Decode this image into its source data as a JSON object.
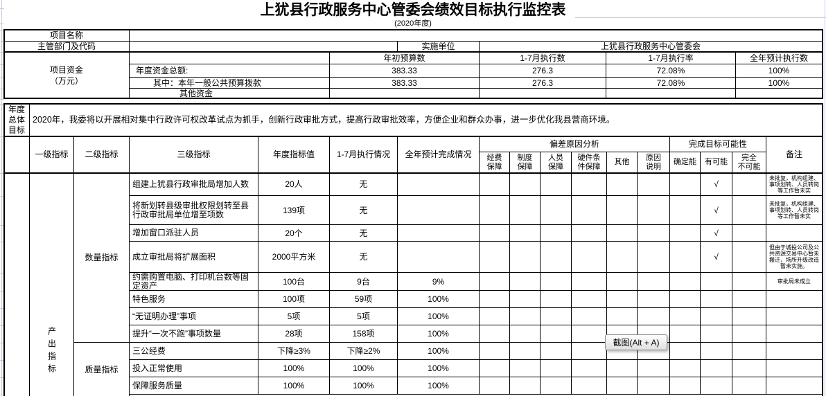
{
  "title": "上犹县行政服务中心管委会绩效目标执行监控表",
  "subtitle": "(2020年度)",
  "info": {
    "project_name_label": "项目名称",
    "department_label": "主管部门及代码",
    "implement_unit_label": "实施单位",
    "implement_unit_value": "上犹县行政服务中心管委会"
  },
  "funds": {
    "label": "项目资金\n（万元）",
    "columns": [
      "年初预算数",
      "1-7月执行数",
      "1-7月执行率",
      "全年预计执行数"
    ],
    "rows": [
      {
        "label": "年度资金总额:",
        "values": [
          "383.33",
          "276.3",
          "72.08%",
          "100%"
        ]
      },
      {
        "label": "其中：本年一般公共预算拨款",
        "values": [
          "383.33",
          "276.3",
          "72.08%",
          "100%"
        ]
      },
      {
        "label": "其他资金",
        "values": [
          "",
          "",
          "",
          ""
        ]
      }
    ]
  },
  "annual_goal": {
    "label": "年度总体目标",
    "text": "2020年，我委将以开展相对集中行政许可权改革试点为抓手，创新行政审批方式，提高行政审批效率，方便企业和群众办事，进一步优化我县营商环境。"
  },
  "indicators": {
    "headers": {
      "level1": "一级指标",
      "level2": "二级指标",
      "level3": "三级指标",
      "target": "年度指标值",
      "exec": "1-7月执行情况",
      "forecast": "全年预计完成情况",
      "deviation": "偏差原因分析",
      "dev_cols": [
        "经费\n保障",
        "制度\n保障",
        "人员\n保障",
        "硬件条\n件保障",
        "其他",
        "原因\n说明"
      ],
      "possibility": "完成目标可能性",
      "pos_cols": [
        "确定能",
        "有可能",
        "完全\n不可能"
      ],
      "remark": "备注"
    },
    "level1_value": "产出指标",
    "level2_values": [
      "数量指标",
      "质量指标"
    ],
    "rows": [
      {
        "level3": "组建上犹县行政审批局增加人数",
        "target": "20人",
        "exec": "无",
        "forecast": "",
        "likely": "√",
        "remark": "未批复，机构组建、事项划转、人员转岗等工作暂未实"
      },
      {
        "level3": "将新划转县级审批权限划转至县行政审批局单位增至项数",
        "target": "139项",
        "exec": "无",
        "forecast": "",
        "likely": "√",
        "remark": "未批复，机构组建、事项划转、人员转岗等工作暂未实"
      },
      {
        "level3": "增加窗口派驻人员",
        "target": "20个",
        "exec": "无",
        "forecast": "",
        "likely": "√",
        "remark": ""
      },
      {
        "level3": "成立审批局将扩展面积",
        "target": "2000平方米",
        "exec": "无",
        "forecast": "",
        "likely": "√",
        "remark": "但由于城投公司及公共资源交易中心暂未搬迁，场所升级改造暂未实施。"
      },
      {
        "level3": "约需购置电脑、打印机台数等固定资产",
        "target": "100台",
        "exec": "9台",
        "forecast": "9%",
        "likely": "",
        "remark": "审批局未成立"
      },
      {
        "level3": "特色服务",
        "target": "100项",
        "exec": "59项",
        "forecast": "100%",
        "likely": "",
        "remark": ""
      },
      {
        "level3": "“无证明办理”事项",
        "target": "5项",
        "exec": "5项",
        "forecast": "100%",
        "likely": "",
        "remark": ""
      },
      {
        "level3": "提升“一次不跑”事项数量",
        "target": "28项",
        "exec": "158项",
        "forecast": "100%",
        "likely": "",
        "remark": ""
      },
      {
        "level3": "三公经费",
        "target": "下降≥3%",
        "exec": "下降≥2%",
        "forecast": "100%",
        "likely": "",
        "remark": ""
      },
      {
        "level3": "投入正常使用",
        "target": "100%",
        "exec": "100%",
        "forecast": "100%",
        "likely": "",
        "remark": ""
      },
      {
        "level3": "保障服务质量",
        "target": "100%",
        "exec": "100%",
        "forecast": "100%",
        "likely": "",
        "remark": ""
      }
    ]
  },
  "tooltip": {
    "text": "截图(Alt + A)"
  }
}
